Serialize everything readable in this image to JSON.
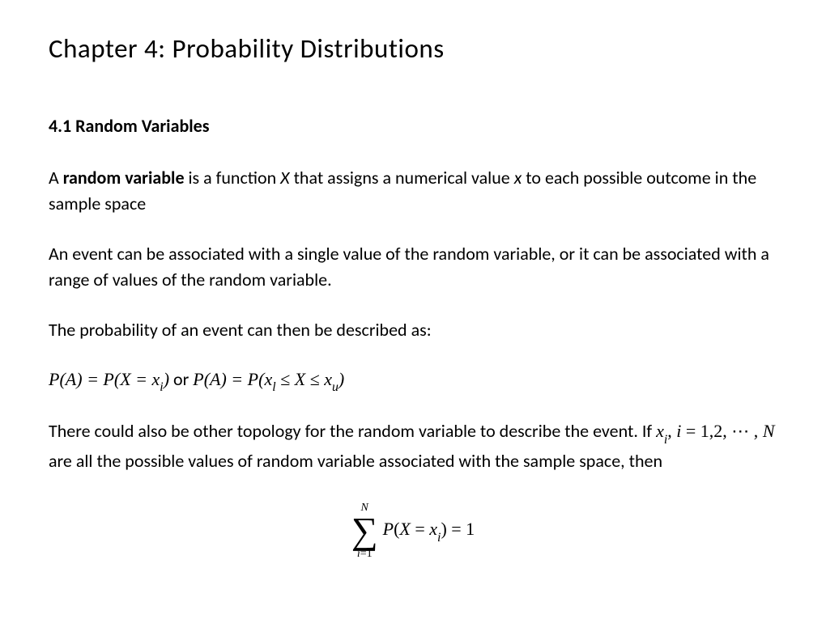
{
  "chapter_title": "Chapter 4: Probability  Distributions",
  "section_heading": "4.1 Random Variables",
  "p1_a": "A ",
  "p1_b": "random variable",
  "p1_c": " is a function ",
  "p1_X": "X",
  "p1_d": " that assigns a numerical value ",
  "p1_x": "x",
  "p1_e": " to each possible outcome in the sample space",
  "p2": "An event can be associated with a single value of the random variable, or it can be associated with a range of values of the random variable.",
  "p3": "The probability of an event can then be described as:",
  "math1": {
    "P1": "P",
    "lp1": "(",
    "A1": "A",
    "rp1": ")",
    "eq1": " = ",
    "P2": "P",
    "lp2": "(",
    "X1": "X",
    "eq2": " = ",
    "x1": "x",
    "i1": "i",
    "rp2": ")",
    "or": "  or ",
    "P3": "P",
    "lp3": "(",
    "A2": "A",
    "rp3": ")",
    "eq3": " = ",
    "P4": "P",
    "lp4": "(",
    "x2": "x",
    "l": "l",
    "le1": " ≤ ",
    "X2": "X",
    "le2": " ≤ ",
    "x3": "x",
    "u": "u",
    "rp4": ")"
  },
  "p4_a": "There could also be other topology for the random variable to describe the event. If ",
  "p4_xi": "x",
  "p4_i": "i",
  "p4_comma": ", ",
  "p4_ivar": "i",
  "p4_eq": " = 1,2, ⋯ , ",
  "p4_N": "N",
  "p4_b": " are all the possible values of random variable associated with the sample space, then",
  "sum": {
    "top": "N",
    "sym": "∑",
    "bot_i": "i",
    "bot_eq": "=1",
    "P": "P",
    "lp": "(",
    "X": "X",
    "eq": " = ",
    "x": "x",
    "sub_i": "i",
    "rp": ")",
    "eq1": " = 1"
  },
  "style": {
    "background": "#ffffff",
    "text_color": "#000000",
    "body_font": "Calibri",
    "math_font": "Cambria Math",
    "title_fontsize": 33,
    "body_fontsize": 22,
    "sigma_fontsize": 46,
    "sigma_limit_fontsize": 14
  }
}
